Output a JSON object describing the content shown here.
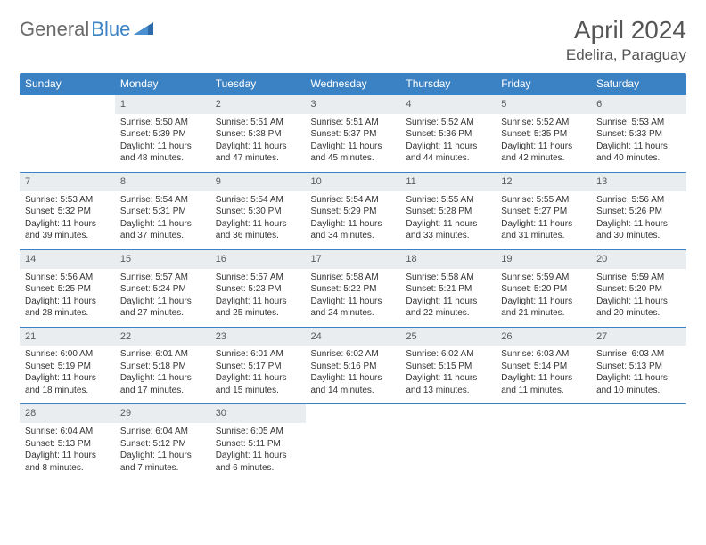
{
  "brand": {
    "name_gray": "General",
    "name_blue": "Blue"
  },
  "title": "April 2024",
  "location": "Edelira, Paraguay",
  "day_headers": [
    "Sunday",
    "Monday",
    "Tuesday",
    "Wednesday",
    "Thursday",
    "Friday",
    "Saturday"
  ],
  "style": {
    "header_bg": "#3b82c4",
    "header_fg": "#ffffff",
    "daynum_bg": "#e9edf0",
    "row_border": "#3b82c4",
    "body_font_size": 10,
    "header_font_size": 12
  },
  "weeks": [
    [
      null,
      {
        "n": "1",
        "sunrise": "5:50 AM",
        "sunset": "5:39 PM",
        "daylight": "11 hours and 48 minutes."
      },
      {
        "n": "2",
        "sunrise": "5:51 AM",
        "sunset": "5:38 PM",
        "daylight": "11 hours and 47 minutes."
      },
      {
        "n": "3",
        "sunrise": "5:51 AM",
        "sunset": "5:37 PM",
        "daylight": "11 hours and 45 minutes."
      },
      {
        "n": "4",
        "sunrise": "5:52 AM",
        "sunset": "5:36 PM",
        "daylight": "11 hours and 44 minutes."
      },
      {
        "n": "5",
        "sunrise": "5:52 AM",
        "sunset": "5:35 PM",
        "daylight": "11 hours and 42 minutes."
      },
      {
        "n": "6",
        "sunrise": "5:53 AM",
        "sunset": "5:33 PM",
        "daylight": "11 hours and 40 minutes."
      }
    ],
    [
      {
        "n": "7",
        "sunrise": "5:53 AM",
        "sunset": "5:32 PM",
        "daylight": "11 hours and 39 minutes."
      },
      {
        "n": "8",
        "sunrise": "5:54 AM",
        "sunset": "5:31 PM",
        "daylight": "11 hours and 37 minutes."
      },
      {
        "n": "9",
        "sunrise": "5:54 AM",
        "sunset": "5:30 PM",
        "daylight": "11 hours and 36 minutes."
      },
      {
        "n": "10",
        "sunrise": "5:54 AM",
        "sunset": "5:29 PM",
        "daylight": "11 hours and 34 minutes."
      },
      {
        "n": "11",
        "sunrise": "5:55 AM",
        "sunset": "5:28 PM",
        "daylight": "11 hours and 33 minutes."
      },
      {
        "n": "12",
        "sunrise": "5:55 AM",
        "sunset": "5:27 PM",
        "daylight": "11 hours and 31 minutes."
      },
      {
        "n": "13",
        "sunrise": "5:56 AM",
        "sunset": "5:26 PM",
        "daylight": "11 hours and 30 minutes."
      }
    ],
    [
      {
        "n": "14",
        "sunrise": "5:56 AM",
        "sunset": "5:25 PM",
        "daylight": "11 hours and 28 minutes."
      },
      {
        "n": "15",
        "sunrise": "5:57 AM",
        "sunset": "5:24 PM",
        "daylight": "11 hours and 27 minutes."
      },
      {
        "n": "16",
        "sunrise": "5:57 AM",
        "sunset": "5:23 PM",
        "daylight": "11 hours and 25 minutes."
      },
      {
        "n": "17",
        "sunrise": "5:58 AM",
        "sunset": "5:22 PM",
        "daylight": "11 hours and 24 minutes."
      },
      {
        "n": "18",
        "sunrise": "5:58 AM",
        "sunset": "5:21 PM",
        "daylight": "11 hours and 22 minutes."
      },
      {
        "n": "19",
        "sunrise": "5:59 AM",
        "sunset": "5:20 PM",
        "daylight": "11 hours and 21 minutes."
      },
      {
        "n": "20",
        "sunrise": "5:59 AM",
        "sunset": "5:20 PM",
        "daylight": "11 hours and 20 minutes."
      }
    ],
    [
      {
        "n": "21",
        "sunrise": "6:00 AM",
        "sunset": "5:19 PM",
        "daylight": "11 hours and 18 minutes."
      },
      {
        "n": "22",
        "sunrise": "6:01 AM",
        "sunset": "5:18 PM",
        "daylight": "11 hours and 17 minutes."
      },
      {
        "n": "23",
        "sunrise": "6:01 AM",
        "sunset": "5:17 PM",
        "daylight": "11 hours and 15 minutes."
      },
      {
        "n": "24",
        "sunrise": "6:02 AM",
        "sunset": "5:16 PM",
        "daylight": "11 hours and 14 minutes."
      },
      {
        "n": "25",
        "sunrise": "6:02 AM",
        "sunset": "5:15 PM",
        "daylight": "11 hours and 13 minutes."
      },
      {
        "n": "26",
        "sunrise": "6:03 AM",
        "sunset": "5:14 PM",
        "daylight": "11 hours and 11 minutes."
      },
      {
        "n": "27",
        "sunrise": "6:03 AM",
        "sunset": "5:13 PM",
        "daylight": "11 hours and 10 minutes."
      }
    ],
    [
      {
        "n": "28",
        "sunrise": "6:04 AM",
        "sunset": "5:13 PM",
        "daylight": "11 hours and 8 minutes."
      },
      {
        "n": "29",
        "sunrise": "6:04 AM",
        "sunset": "5:12 PM",
        "daylight": "11 hours and 7 minutes."
      },
      {
        "n": "30",
        "sunrise": "6:05 AM",
        "sunset": "5:11 PM",
        "daylight": "11 hours and 6 minutes."
      },
      null,
      null,
      null,
      null
    ]
  ],
  "labels": {
    "sunrise": "Sunrise:",
    "sunset": "Sunset:",
    "daylight": "Daylight:"
  }
}
